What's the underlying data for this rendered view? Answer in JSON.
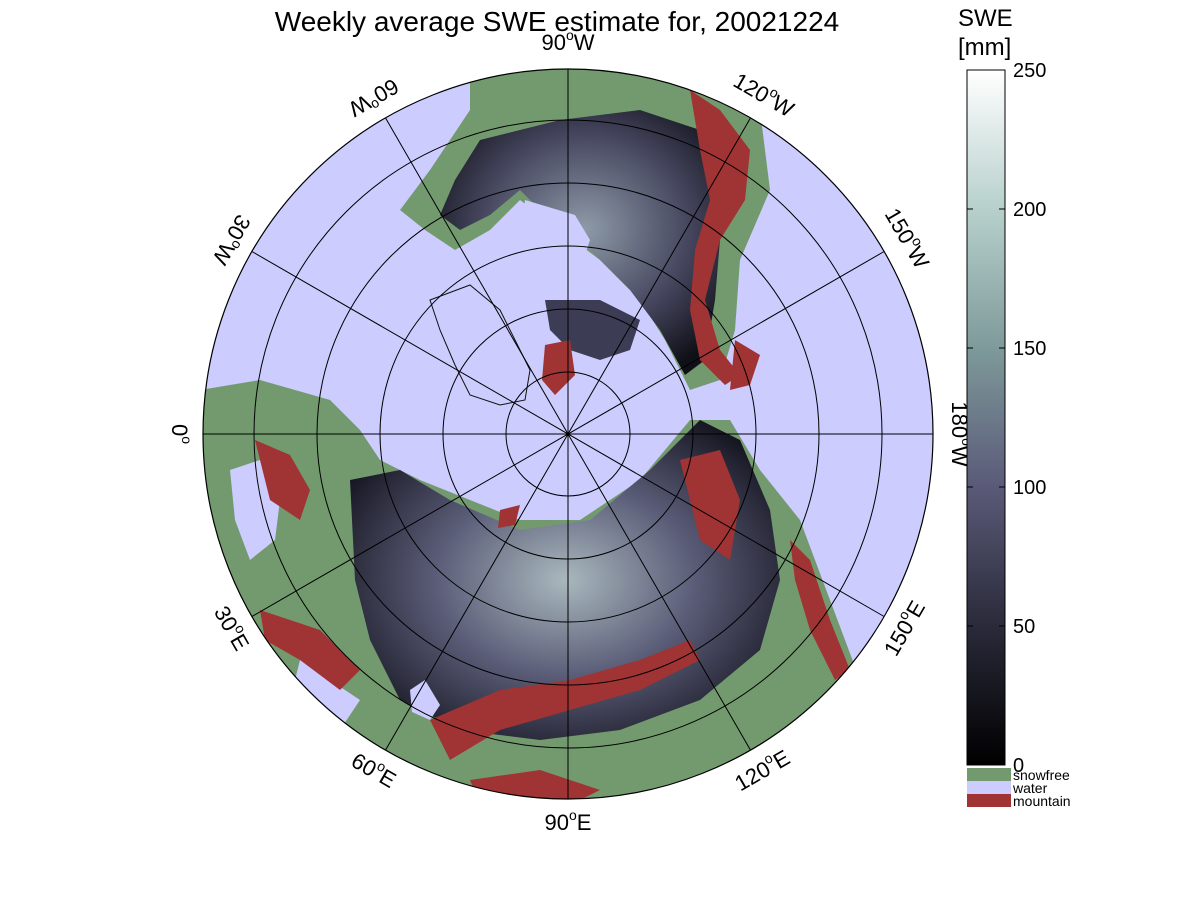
{
  "title": "Weekly average SWE estimate for, 20021224",
  "colorbar": {
    "label_line1": "SWE",
    "label_line2": "[mm]",
    "ticks": [
      "0",
      "50",
      "100",
      "150",
      "200",
      "250"
    ],
    "range": [
      0,
      250
    ],
    "categories": [
      {
        "name": "snowfree",
        "color": "#739a6e"
      },
      {
        "name": "water",
        "color": "#ccccff"
      },
      {
        "name": "mountain",
        "color": "#a03333"
      }
    ]
  },
  "map": {
    "projection": "north polar stereographic",
    "longitude_labels": [
      {
        "deg": "90",
        "hemi": "W"
      },
      {
        "deg": "120",
        "hemi": "W"
      },
      {
        "deg": "150",
        "hemi": "W"
      },
      {
        "deg": "180",
        "hemi": "W"
      },
      {
        "deg": "150",
        "hemi": "E"
      },
      {
        "deg": "120",
        "hemi": "E"
      },
      {
        "deg": "90",
        "hemi": "E"
      },
      {
        "deg": "60",
        "hemi": "E"
      },
      {
        "deg": "30",
        "hemi": "E"
      },
      {
        "deg": "0",
        "hemi": ""
      },
      {
        "deg": "30",
        "hemi": "W"
      },
      {
        "deg": "60",
        "hemi": "W"
      }
    ],
    "colors": {
      "water": "#ccccff",
      "snowfree": "#739a6e",
      "mountain": "#a03333",
      "snow_low": "#0a0a14",
      "snow_mid": "#4a4a66",
      "snow_high": "#a9c2c0"
    }
  }
}
